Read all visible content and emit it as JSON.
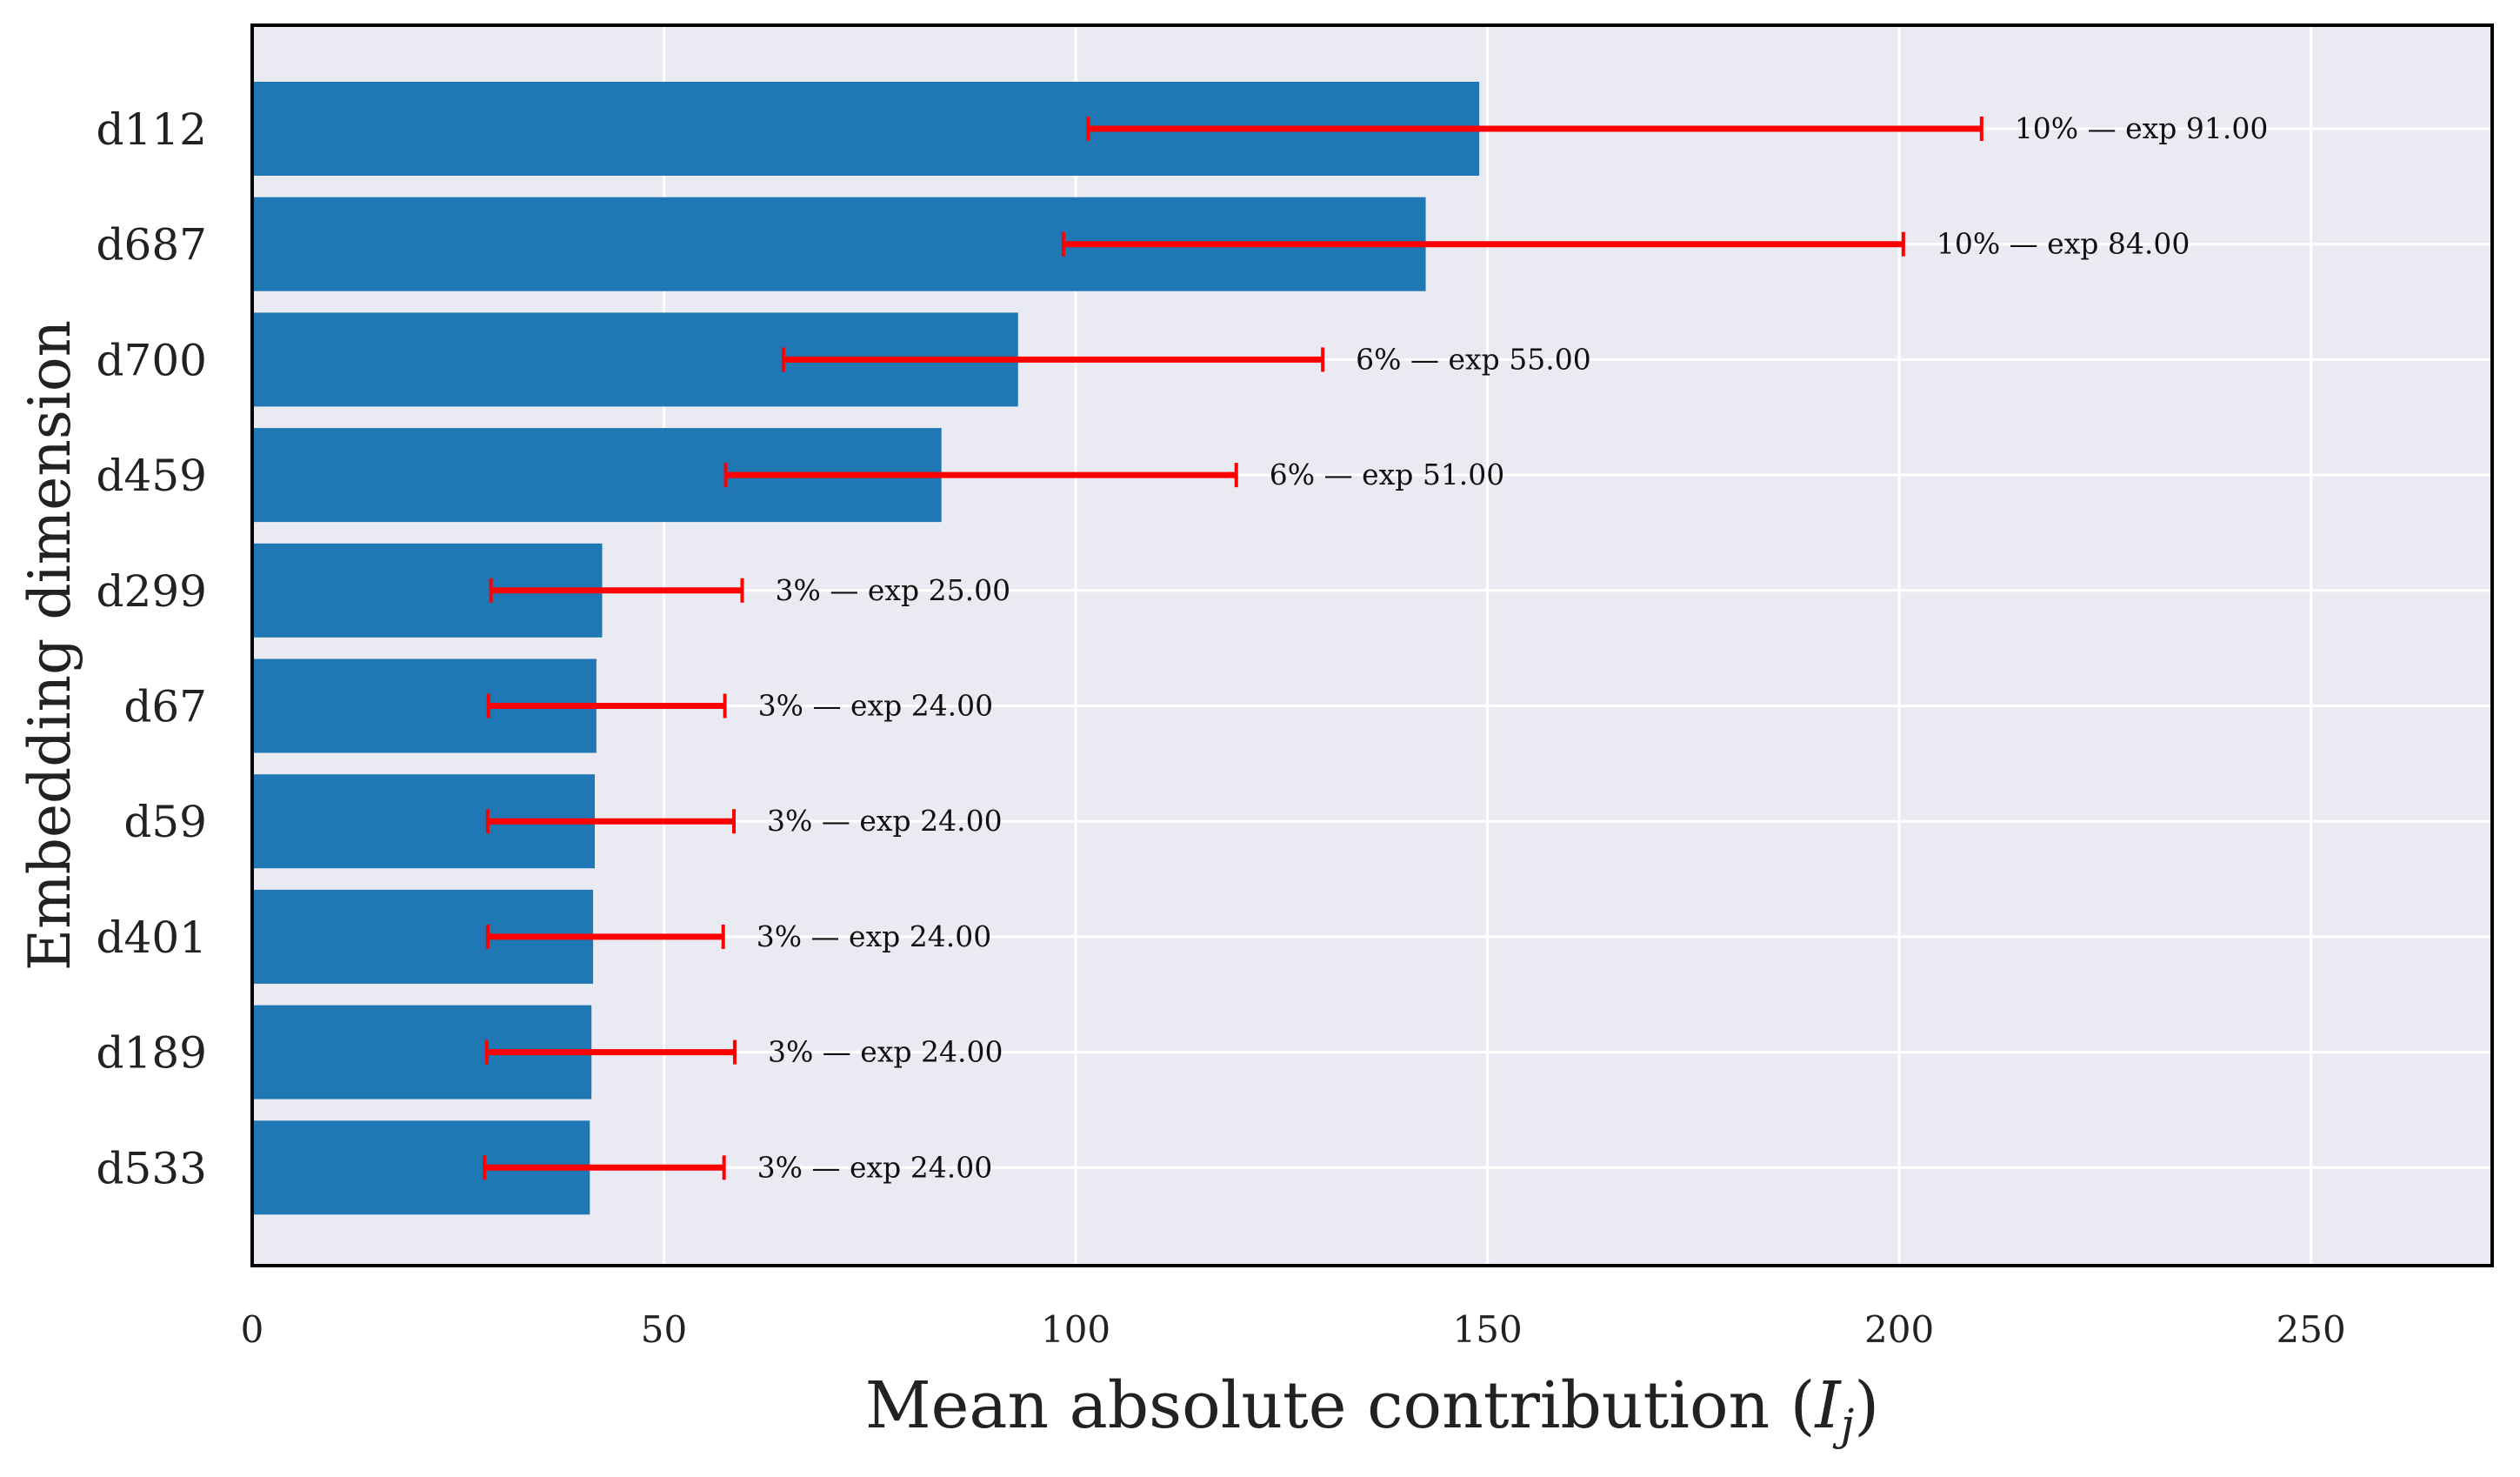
{
  "chart_data": {
    "type": "bar",
    "orientation": "horizontal",
    "xlabel": "Mean absolute contribution (",
    "xlabel_symbol": "I",
    "xlabel_subscript": "j",
    "xlabel_suffix": ")",
    "ylabel": "Embedding dimension",
    "xlim": [
      0,
      272
    ],
    "xticks": [
      0,
      50,
      100,
      150,
      200,
      250
    ],
    "grid": true,
    "colors": {
      "bar": "#1f77b4",
      "error": "#ff0000",
      "background": "#eaeaf2",
      "grid": "#ffffff",
      "frame": "#000000"
    },
    "bars": [
      {
        "category": "d112",
        "value": 149,
        "err_low": 101.5,
        "err_high": 210,
        "label": "10% — exp 91.00"
      },
      {
        "category": "d687",
        "value": 142.5,
        "err_low": 98.5,
        "err_high": 200.5,
        "label": "10% — exp 84.00"
      },
      {
        "category": "d700",
        "value": 93,
        "err_low": 64.5,
        "err_high": 130,
        "label": "6% — exp 55.00"
      },
      {
        "category": "d459",
        "value": 83.7,
        "err_low": 57.5,
        "err_high": 119.5,
        "label": "6% — exp 51.00"
      },
      {
        "category": "d299",
        "value": 42.5,
        "err_low": 29,
        "err_high": 59.5,
        "label": "3% — exp 25.00"
      },
      {
        "category": "d67",
        "value": 41.8,
        "err_low": 28.7,
        "err_high": 57.4,
        "label": "3% — exp 24.00"
      },
      {
        "category": "d59",
        "value": 41.6,
        "err_low": 28.6,
        "err_high": 58.5,
        "label": "3% — exp 24.00"
      },
      {
        "category": "d401",
        "value": 41.4,
        "err_low": 28.6,
        "err_high": 57.2,
        "label": "3% — exp 24.00"
      },
      {
        "category": "d189",
        "value": 41.2,
        "err_low": 28.5,
        "err_high": 58.6,
        "label": "3% — exp 24.00"
      },
      {
        "category": "d533",
        "value": 41,
        "err_low": 28.2,
        "err_high": 57.3,
        "label": "3% — exp 24.00"
      }
    ]
  }
}
